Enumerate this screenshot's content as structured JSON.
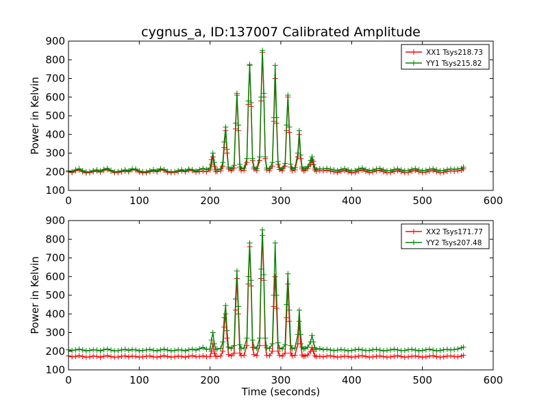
{
  "title": "cygnus_a, ID:137007 Calibrated Amplitude",
  "colors": {
    "red": "#ff0000",
    "green": "#008000"
  },
  "chart_data": [
    {
      "type": "line",
      "xlabel": "",
      "ylabel": "Power in Kelvin",
      "xlim": [
        0,
        600
      ],
      "ylim": [
        100,
        900
      ],
      "xticks": [
        "0",
        "100",
        "200",
        "300",
        "400",
        "500",
        "600"
      ],
      "yticks": [
        "100",
        "200",
        "300",
        "400",
        "500",
        "600",
        "700",
        "800",
        "900"
      ],
      "legend_position": "top-right",
      "grid": false,
      "x": [
        0,
        5,
        10,
        15,
        20,
        25,
        30,
        35,
        40,
        45,
        50,
        55,
        60,
        65,
        70,
        75,
        80,
        85,
        90,
        95,
        100,
        105,
        110,
        115,
        120,
        125,
        130,
        135,
        140,
        145,
        150,
        155,
        160,
        165,
        170,
        175,
        180,
        185,
        190,
        195,
        200,
        202,
        204,
        206,
        208,
        210,
        215,
        218,
        220,
        222,
        224,
        226,
        230,
        234,
        236,
        238,
        240,
        242,
        244,
        248,
        252,
        254,
        256,
        258,
        260,
        262,
        266,
        270,
        272,
        274,
        276,
        278,
        280,
        284,
        288,
        290,
        292,
        294,
        296,
        298,
        302,
        306,
        308,
        310,
        312,
        314,
        316,
        320,
        324,
        326,
        328,
        330,
        332,
        334,
        338,
        342,
        344,
        346,
        348,
        350,
        355,
        360,
        365,
        370,
        375,
        380,
        385,
        390,
        395,
        400,
        405,
        410,
        415,
        420,
        425,
        430,
        435,
        440,
        445,
        450,
        455,
        460,
        465,
        470,
        475,
        480,
        485,
        490,
        495,
        500,
        505,
        510,
        515,
        520,
        525,
        530,
        535,
        540,
        545,
        550,
        555,
        558
      ],
      "series": [
        {
          "name": "XX1 Tsys218.73",
          "color": "#ff0000",
          "values": [
            200,
            196,
            205,
            210,
            200,
            194,
            195,
            201,
            204,
            198,
            208,
            212,
            203,
            195,
            196,
            200,
            204,
            200,
            211,
            209,
            198,
            194,
            195,
            200,
            205,
            200,
            211,
            207,
            197,
            195,
            196,
            201,
            205,
            200,
            209,
            206,
            198,
            201,
            204,
            200,
            210,
            240,
            280,
            230,
            200,
            202,
            205,
            230,
            330,
            420,
            300,
            215,
            205,
            220,
            430,
            610,
            420,
            225,
            206,
            208,
            250,
            560,
            770,
            550,
            260,
            215,
            206,
            260,
            580,
            840,
            600,
            270,
            210,
            206,
            230,
            470,
            700,
            460,
            240,
            212,
            205,
            230,
            420,
            600,
            410,
            225,
            205,
            210,
            280,
            400,
            270,
            215,
            205,
            207,
            218,
            240,
            262,
            238,
            210,
            203,
            206,
            205,
            208,
            204,
            200,
            196,
            202,
            207,
            200,
            194,
            197,
            205,
            210,
            202,
            196,
            199,
            205,
            208,
            200,
            195,
            196,
            202,
            206,
            200,
            195,
            196,
            203,
            207,
            200,
            196,
            198,
            203,
            206,
            200,
            195,
            197,
            202,
            205,
            203,
            205,
            208,
            215
          ]
        },
        {
          "name": "YY1 Tsys215.82",
          "color": "#008000",
          "values": [
            205,
            200,
            210,
            216,
            206,
            199,
            200,
            206,
            210,
            204,
            213,
            218,
            208,
            200,
            201,
            205,
            210,
            205,
            216,
            214,
            204,
            200,
            200,
            206,
            211,
            205,
            216,
            212,
            202,
            200,
            201,
            206,
            211,
            205,
            214,
            211,
            204,
            212,
            218,
            212,
            220,
            265,
            300,
            250,
            210,
            212,
            215,
            250,
            360,
            440,
            320,
            225,
            215,
            235,
            460,
            620,
            450,
            240,
            215,
            220,
            270,
            580,
            775,
            570,
            270,
            225,
            216,
            280,
            600,
            850,
            620,
            280,
            220,
            216,
            250,
            490,
            770,
            490,
            255,
            222,
            215,
            245,
            450,
            610,
            440,
            240,
            215,
            222,
            300,
            420,
            290,
            225,
            215,
            217,
            228,
            260,
            280,
            255,
            220,
            213,
            216,
            215,
            218,
            214,
            210,
            206,
            212,
            217,
            210,
            204,
            207,
            215,
            220,
            212,
            206,
            209,
            215,
            218,
            210,
            205,
            206,
            212,
            216,
            210,
            205,
            206,
            213,
            217,
            210,
            206,
            208,
            213,
            216,
            210,
            205,
            207,
            212,
            215,
            213,
            215,
            218,
            225
          ]
        }
      ]
    },
    {
      "type": "line",
      "xlabel": "Time (seconds)",
      "ylabel": "Power in Kelvin",
      "xlim": [
        0,
        600
      ],
      "ylim": [
        100,
        900
      ],
      "xticks": [
        "0",
        "100",
        "200",
        "300",
        "400",
        "500",
        "600"
      ],
      "yticks": [
        "100",
        "200",
        "300",
        "400",
        "500",
        "600",
        "700",
        "800",
        "900"
      ],
      "legend_position": "top-right",
      "grid": false,
      "x": [
        0,
        5,
        10,
        15,
        20,
        25,
        30,
        35,
        40,
        45,
        50,
        55,
        60,
        65,
        70,
        75,
        80,
        85,
        90,
        95,
        100,
        105,
        110,
        115,
        120,
        125,
        130,
        135,
        140,
        145,
        150,
        155,
        160,
        165,
        170,
        175,
        180,
        185,
        190,
        195,
        200,
        202,
        204,
        206,
        208,
        210,
        215,
        218,
        220,
        222,
        224,
        226,
        230,
        234,
        236,
        238,
        240,
        242,
        244,
        248,
        252,
        254,
        256,
        258,
        260,
        262,
        266,
        270,
        272,
        274,
        276,
        278,
        280,
        284,
        288,
        290,
        292,
        294,
        296,
        298,
        302,
        306,
        308,
        310,
        312,
        314,
        316,
        320,
        324,
        326,
        328,
        330,
        332,
        334,
        338,
        342,
        344,
        346,
        348,
        350,
        355,
        360,
        365,
        370,
        375,
        380,
        385,
        390,
        395,
        400,
        405,
        410,
        415,
        420,
        425,
        430,
        435,
        440,
        445,
        450,
        455,
        460,
        465,
        470,
        475,
        480,
        485,
        490,
        495,
        500,
        505,
        510,
        515,
        520,
        525,
        530,
        535,
        540,
        545,
        550,
        555,
        558
      ],
      "series": [
        {
          "name": "XX2 Tsys171.77",
          "color": "#ff0000",
          "values": [
            175,
            170,
            172,
            176,
            172,
            168,
            170,
            174,
            172,
            168,
            173,
            176,
            171,
            168,
            169,
            173,
            175,
            170,
            174,
            172,
            168,
            170,
            173,
            175,
            170,
            168,
            172,
            176,
            172,
            168,
            170,
            174,
            172,
            168,
            173,
            176,
            171,
            172,
            175,
            171,
            172,
            200,
            240,
            190,
            172,
            172,
            175,
            200,
            330,
            400,
            270,
            182,
            175,
            190,
            420,
            590,
            400,
            190,
            176,
            178,
            230,
            560,
            760,
            550,
            220,
            182,
            176,
            230,
            590,
            820,
            580,
            230,
            178,
            176,
            200,
            440,
            600,
            430,
            200,
            178,
            174,
            190,
            380,
            560,
            360,
            190,
            175,
            178,
            240,
            360,
            240,
            180,
            173,
            175,
            180,
            200,
            220,
            200,
            176,
            171,
            173,
            170,
            174,
            176,
            172,
            168,
            170,
            174,
            172,
            168,
            170,
            174,
            176,
            172,
            168,
            170,
            173,
            175,
            171,
            168,
            170,
            173,
            176,
            172,
            168,
            170,
            173,
            175,
            171,
            168,
            170,
            174,
            176,
            171,
            168,
            170,
            174,
            175,
            172,
            170,
            174,
            178
          ]
        },
        {
          "name": "YY2 Tsys207.48",
          "color": "#008000",
          "values": [
            208,
            204,
            207,
            211,
            207,
            202,
            204,
            208,
            206,
            202,
            208,
            212,
            206,
            202,
            203,
            207,
            210,
            205,
            209,
            207,
            202,
            204,
            207,
            210,
            205,
            202,
            207,
            211,
            206,
            202,
            204,
            208,
            206,
            202,
            208,
            211,
            206,
            213,
            220,
            210,
            212,
            260,
            300,
            240,
            210,
            212,
            215,
            250,
            380,
            445,
            310,
            222,
            214,
            230,
            480,
            630,
            440,
            235,
            214,
            218,
            270,
            600,
            780,
            580,
            260,
            222,
            214,
            270,
            640,
            850,
            610,
            270,
            218,
            214,
            240,
            500,
            780,
            500,
            245,
            218,
            212,
            235,
            450,
            615,
            420,
            230,
            213,
            218,
            290,
            420,
            290,
            222,
            212,
            214,
            222,
            250,
            285,
            250,
            218,
            210,
            214,
            208,
            211,
            207,
            203,
            206,
            209,
            206,
            202,
            204,
            208,
            211,
            207,
            203,
            204,
            208,
            210,
            206,
            202,
            204,
            207,
            211,
            207,
            203,
            204,
            208,
            210,
            206,
            202,
            204,
            208,
            211,
            206,
            202,
            204,
            208,
            210,
            207,
            209,
            212,
            218,
            222
          ]
        }
      ]
    }
  ]
}
